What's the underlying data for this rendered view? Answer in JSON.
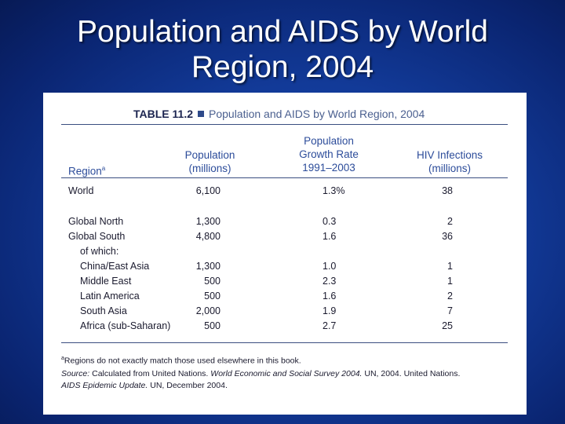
{
  "slide": {
    "title_line1": "Population and AIDS by World",
    "title_line2": "Region, 2004"
  },
  "table": {
    "number": "TABLE 11.2",
    "title": "Population and AIDS by World Region, 2004",
    "headers": {
      "region": "Region",
      "region_note": "a",
      "population_1": "Population",
      "population_2": "(millions)",
      "growth_1": "Population",
      "growth_2": "Growth Rate",
      "growth_3": "1991–2003",
      "hiv_1": "HIV Infections",
      "hiv_2": "(millions)"
    },
    "rows": [
      {
        "region": "World",
        "population": "6,100",
        "growth": "1.3%",
        "hiv": "38"
      },
      {
        "region": "Global North",
        "population": "1,300",
        "growth": "0.3",
        "hiv": "2"
      },
      {
        "region": "Global South",
        "population": "4,800",
        "growth": "1.6",
        "hiv": "36"
      },
      {
        "region": "of which:",
        "population": "",
        "growth": "",
        "hiv": ""
      },
      {
        "region": "China/East Asia",
        "population": "1,300",
        "growth": "1.0",
        "hiv": "1"
      },
      {
        "region": "Middle East",
        "population": "500",
        "growth": "2.3",
        "hiv": "1"
      },
      {
        "region": "Latin America",
        "population": "500",
        "growth": "1.6",
        "hiv": "2"
      },
      {
        "region": "South Asia",
        "population": "2,000",
        "growth": "1.9",
        "hiv": "7"
      },
      {
        "region": "Africa (sub-Saharan)",
        "population": "500",
        "growth": "2.7",
        "hiv": "25"
      }
    ],
    "footnote_marker": "a",
    "footnote": "Regions do not exactly match those used elsewhere in this book.",
    "source_label": "Source:",
    "source_part1": "Calculated from United Nations.",
    "source_title1": "World Economic and Social Survey 2004.",
    "source_part2": "UN, 2004. United Nations.",
    "source_title2": "AIDS Epidemic Update.",
    "source_part3": "UN, December 2004."
  }
}
